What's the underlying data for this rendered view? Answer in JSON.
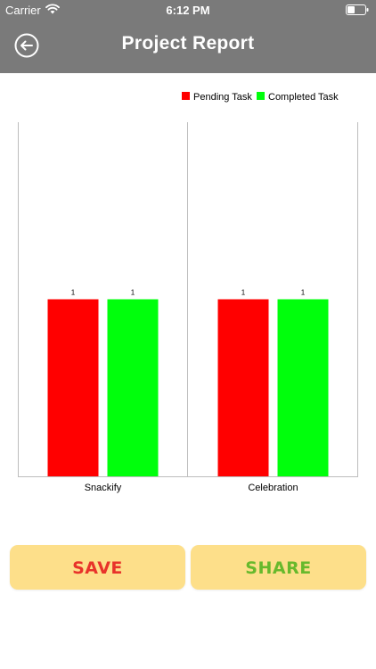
{
  "status_bar": {
    "carrier": "Carrier",
    "time": "6:12 PM",
    "wifi_icon": "wifi-icon",
    "battery_icon": "battery-icon"
  },
  "header": {
    "title": "Project Report",
    "back_icon": "back-arrow-circle-icon",
    "background_color": "#7a7a7a"
  },
  "chart_data": {
    "type": "bar",
    "categories": [
      "Snackify",
      "Celebration"
    ],
    "series": [
      {
        "name": "Pending Task",
        "values": [
          1,
          1
        ],
        "color": "#ff0000",
        "data_labels": [
          "1",
          "1"
        ]
      },
      {
        "name": "Completed Task",
        "values": [
          1,
          1
        ],
        "color": "#00ff0c",
        "data_labels": [
          "1",
          "1"
        ]
      }
    ],
    "ylim": [
      0,
      2
    ],
    "legend_position": "top-right",
    "grid": false,
    "title": "",
    "xlabel": "",
    "ylabel": ""
  },
  "buttons": {
    "save_label": "SAVE",
    "share_label": "SHARE",
    "background_color": "#fddf8a",
    "save_color": "#e8332a",
    "share_color": "#67b92c"
  }
}
